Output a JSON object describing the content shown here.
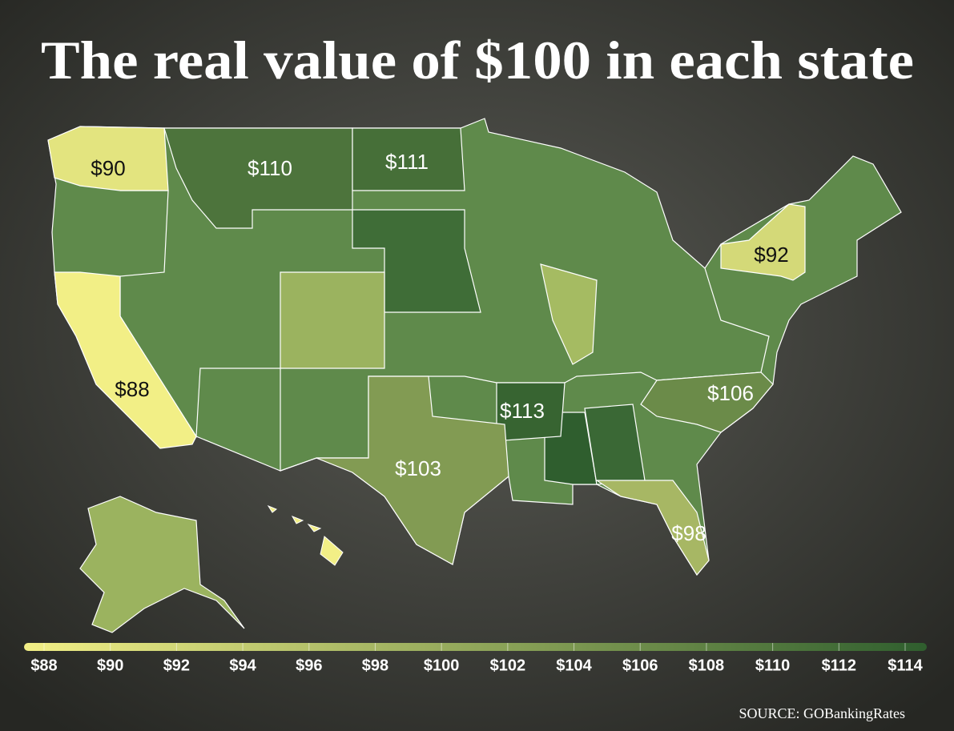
{
  "title": "The real value of $100 in each state",
  "states": [
    {
      "value": 90,
      "label": "$90"
    },
    {
      "value": 110,
      "label": "$110"
    },
    {
      "value": 111,
      "label": "$111"
    },
    {
      "value": 92,
      "label": "$92"
    },
    {
      "value": 88,
      "label": "$88"
    },
    {
      "value": 106,
      "label": "$106"
    },
    {
      "value": 113,
      "label": "$113"
    },
    {
      "value": 103,
      "label": "$103"
    },
    {
      "value": 98,
      "label": "$98"
    }
  ],
  "legend": {
    "colors": [
      "#f2ef86",
      "#2f5e2e"
    ],
    "ticks": [
      {
        "value": 88,
        "label": "$88"
      },
      {
        "value": 90,
        "label": "$90"
      },
      {
        "value": 92,
        "label": "$92"
      },
      {
        "value": 94,
        "label": "$94"
      },
      {
        "value": 96,
        "label": "$96"
      },
      {
        "value": 98,
        "label": "$98"
      },
      {
        "value": 100,
        "label": "$100"
      },
      {
        "value": 102,
        "label": "$102"
      },
      {
        "value": 104,
        "label": "$104"
      },
      {
        "value": 106,
        "label": "$106"
      },
      {
        "value": 108,
        "label": "$108"
      },
      {
        "value": 110,
        "label": "$110"
      },
      {
        "value": 112,
        "label": "$112"
      },
      {
        "value": 114,
        "label": "$114"
      }
    ]
  },
  "source": "SOURCE: GOBankingRates"
}
